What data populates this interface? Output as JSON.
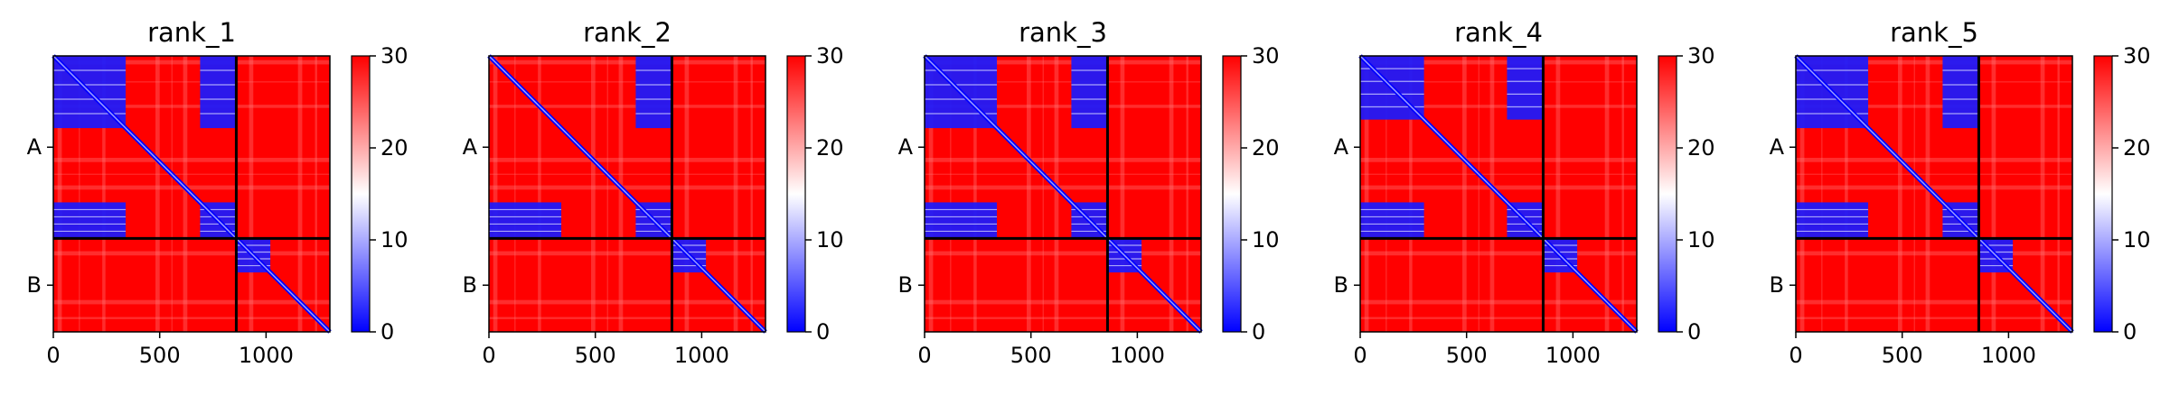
{
  "chart_data": {
    "type": "heatmap",
    "colormap": [
      "#0000ff",
      "#ffffff",
      "#ff0000"
    ],
    "colorbar": {
      "min": 0,
      "max": 30,
      "ticks": [
        "0",
        "10",
        "20",
        "30"
      ]
    },
    "x_ticks": [
      {
        "value": 0,
        "label": "0"
      },
      {
        "value": 500,
        "label": "500"
      },
      {
        "value": 1000,
        "label": "1000"
      }
    ],
    "xlim": [
      0,
      1300
    ],
    "chain_boundary": 860,
    "y_labels": [
      "A",
      "B"
    ],
    "panels": [
      {
        "title": "rank_1",
        "low_blocks": [
          [
            0,
            340,
            0,
            340
          ],
          [
            690,
            860,
            0,
            340
          ],
          [
            0,
            340,
            690,
            860
          ],
          [
            690,
            860,
            690,
            860
          ],
          [
            860,
            1020,
            860,
            1020
          ]
        ]
      },
      {
        "title": "rank_2",
        "low_blocks": [
          [
            0,
            340,
            690,
            860
          ],
          [
            690,
            860,
            0,
            340
          ],
          [
            690,
            860,
            690,
            860
          ],
          [
            860,
            1020,
            860,
            1020
          ]
        ]
      },
      {
        "title": "rank_3",
        "low_blocks": [
          [
            0,
            340,
            0,
            340
          ],
          [
            690,
            860,
            0,
            340
          ],
          [
            0,
            340,
            690,
            860
          ],
          [
            690,
            860,
            690,
            860
          ],
          [
            860,
            1020,
            860,
            1020
          ]
        ]
      },
      {
        "title": "rank_4",
        "low_blocks": [
          [
            0,
            300,
            0,
            300
          ],
          [
            690,
            860,
            0,
            300
          ],
          [
            0,
            300,
            690,
            860
          ],
          [
            690,
            860,
            690,
            860
          ],
          [
            860,
            1020,
            860,
            1020
          ]
        ]
      },
      {
        "title": "rank_5",
        "low_blocks": [
          [
            0,
            340,
            0,
            340
          ],
          [
            690,
            860,
            0,
            340
          ],
          [
            0,
            340,
            690,
            860
          ],
          [
            690,
            860,
            690,
            860
          ],
          [
            860,
            1020,
            860,
            1020
          ]
        ]
      }
    ]
  }
}
